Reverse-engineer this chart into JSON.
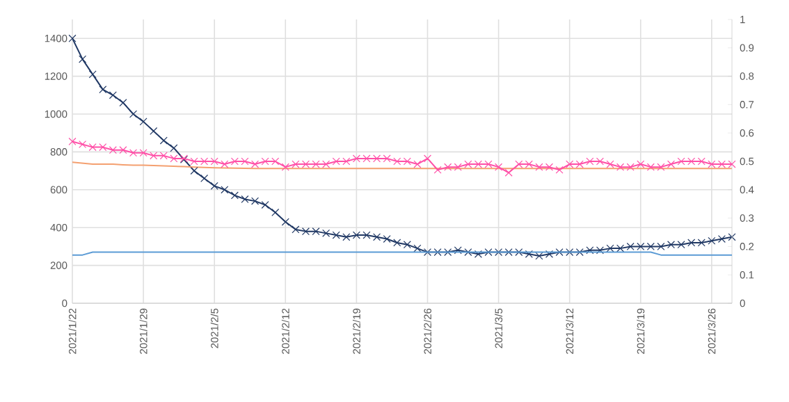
{
  "chart_data": {
    "type": "line",
    "categories": [
      "2021/1/22",
      null,
      null,
      null,
      null,
      null,
      null,
      "2021/1/29",
      null,
      null,
      null,
      null,
      null,
      null,
      "2021/2/5",
      null,
      null,
      null,
      null,
      null,
      null,
      "2021/2/12",
      null,
      null,
      null,
      null,
      null,
      null,
      "2021/2/19",
      null,
      null,
      null,
      null,
      null,
      null,
      "2021/2/26",
      null,
      null,
      null,
      null,
      null,
      null,
      "2021/3/5",
      null,
      null,
      null,
      null,
      null,
      null,
      "2021/3/12",
      null,
      null,
      null,
      null,
      null,
      null,
      "2021/3/19",
      null,
      null,
      null,
      null,
      null,
      null,
      "2021/3/26",
      null,
      null
    ],
    "series": [
      {
        "color": "#203864",
        "marker": "cross",
        "values": [
          1400,
          1290,
          1210,
          1130,
          1100,
          1060,
          1000,
          960,
          910,
          860,
          820,
          760,
          700,
          660,
          620,
          600,
          570,
          550,
          540,
          520,
          480,
          430,
          390,
          380,
          380,
          370,
          360,
          350,
          360,
          360,
          350,
          340,
          320,
          310,
          290,
          270,
          270,
          270,
          280,
          270,
          260,
          270,
          270,
          270,
          270,
          260,
          250,
          260,
          270,
          270,
          270,
          280,
          280,
          290,
          290,
          300,
          300,
          300,
          300,
          310,
          310,
          320,
          320,
          330,
          340,
          350
        ]
      },
      {
        "color": "#f4a070",
        "marker": "none",
        "values": [
          745,
          740,
          735,
          735,
          735,
          732,
          730,
          730,
          728,
          726,
          724,
          722,
          720,
          718,
          716,
          715,
          714,
          713,
          712,
          712,
          712,
          712,
          712,
          712,
          712,
          712,
          712,
          712,
          712,
          712,
          712,
          712,
          712,
          712,
          712,
          712,
          712,
          712,
          712,
          712,
          712,
          712,
          712,
          712,
          712,
          712,
          712,
          712,
          712,
          712,
          712,
          712,
          712,
          712,
          712,
          712,
          712,
          712,
          712,
          712,
          712,
          712,
          712,
          712,
          712,
          712
        ]
      },
      {
        "color": "#ff4fa7",
        "marker": "cross",
        "axis": "y2",
        "values": [
          0.57,
          0.56,
          0.55,
          0.55,
          0.54,
          0.54,
          0.53,
          0.53,
          0.52,
          0.52,
          0.51,
          0.51,
          0.5,
          0.5,
          0.5,
          0.49,
          0.5,
          0.5,
          0.49,
          0.5,
          0.5,
          0.48,
          0.49,
          0.49,
          0.49,
          0.49,
          0.5,
          0.5,
          0.51,
          0.51,
          0.51,
          0.51,
          0.5,
          0.5,
          0.49,
          0.51,
          0.47,
          0.48,
          0.48,
          0.49,
          0.49,
          0.49,
          0.48,
          0.46,
          0.49,
          0.49,
          0.48,
          0.48,
          0.47,
          0.49,
          0.49,
          0.5,
          0.5,
          0.49,
          0.48,
          0.48,
          0.49,
          0.48,
          0.48,
          0.49,
          0.5,
          0.5,
          0.5,
          0.49,
          0.49,
          0.49
        ]
      },
      {
        "color": "#5b9bd5",
        "marker": "none",
        "axis": "y2",
        "values": [
          0.17,
          0.17,
          0.18,
          0.18,
          0.18,
          0.18,
          0.18,
          0.18,
          0.18,
          0.18,
          0.18,
          0.18,
          0.18,
          0.18,
          0.18,
          0.18,
          0.18,
          0.18,
          0.18,
          0.18,
          0.18,
          0.18,
          0.18,
          0.18,
          0.18,
          0.18,
          0.18,
          0.18,
          0.18,
          0.18,
          0.18,
          0.18,
          0.18,
          0.18,
          0.18,
          0.18,
          0.18,
          0.18,
          0.18,
          0.18,
          0.18,
          0.18,
          0.18,
          0.18,
          0.18,
          0.18,
          0.18,
          0.18,
          0.18,
          0.18,
          0.18,
          0.18,
          0.18,
          0.18,
          0.18,
          0.18,
          0.18,
          0.18,
          0.17,
          0.17,
          0.17,
          0.17,
          0.17,
          0.17,
          0.17,
          0.17
        ]
      }
    ],
    "ylim": [
      0,
      1500
    ],
    "yticks": [
      0,
      200,
      400,
      600,
      800,
      1000,
      1200,
      1400
    ],
    "y2lim": [
      0,
      1
    ],
    "y2ticks": [
      0,
      0.1,
      0.2,
      0.3,
      0.4,
      0.5,
      0.6,
      0.7,
      0.8,
      0.9,
      1
    ],
    "grid": true
  }
}
